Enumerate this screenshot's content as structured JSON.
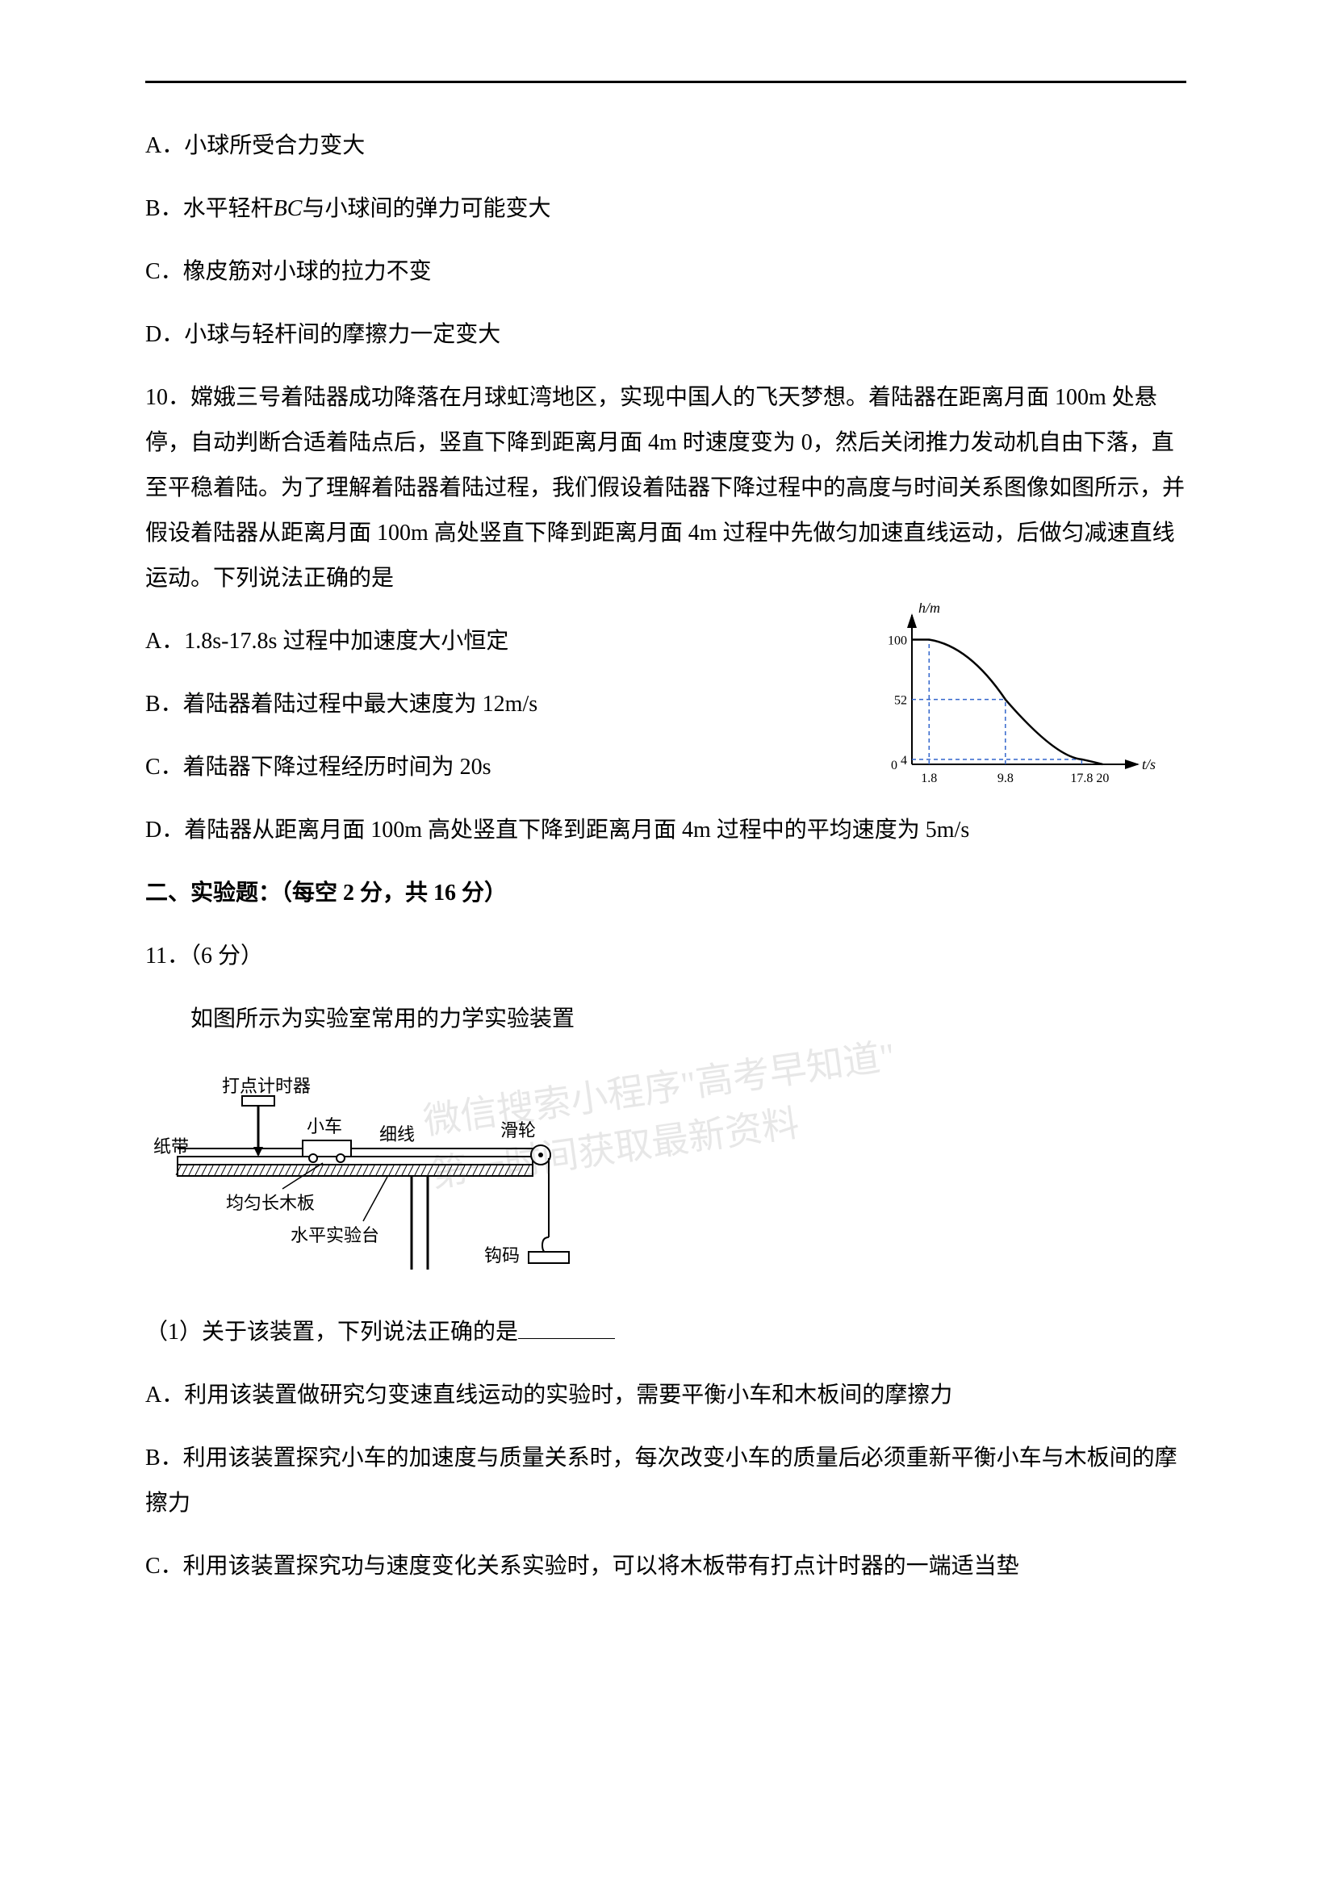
{
  "question9": {
    "options": {
      "A": "A．小球所受合力变大",
      "B_pre": "B．水平轻杆",
      "B_var": "BC",
      "B_post": "与小球间的弹力可能变大",
      "C": "C．橡皮筋对小球的拉力不变",
      "D": "D．小球与轻杆间的摩擦力一定变大"
    }
  },
  "question10": {
    "stem": "10．嫦娥三号着陆器成功降落在月球虹湾地区，实现中国人的飞天梦想。着陆器在距离月面 100m 处悬停，自动判断合适着陆点后，竖直下降到距离月面 4m 时速度变为 0，然后关闭推力发动机自由下落，直至平稳着陆。为了理解着陆器着陆过程，我们假设着陆器下降过程中的高度与时间关系图像如图所示，并假设着陆器从距离月面 100m 高处竖直下降到距离月面 4m 过程中先做匀加速直线运动，后做匀减速直线运动。下列说法正确的是",
    "options": {
      "A": "A．1.8s-17.8s 过程中加速度大小恒定",
      "B": "B．着陆器着陆过程中最大速度为 12m/s",
      "C": "C．着陆器下降过程经历时间为 20s",
      "D": "D．着陆器从距离月面 100m 高处竖直下降到距离月面 4m 过程中的平均速度为 5m/s"
    },
    "chart": {
      "type": "line",
      "x_axis": {
        "label": "t/s",
        "ticks": [
          0,
          1.8,
          9.8,
          17.8,
          20
        ],
        "range": [
          0,
          22
        ]
      },
      "y_axis": {
        "label": "h/m",
        "ticks": [
          0,
          4,
          52,
          100
        ],
        "range": [
          0,
          110
        ]
      },
      "curve_points": [
        {
          "t": 0,
          "h": 100
        },
        {
          "t": 1.8,
          "h": 100
        },
        {
          "t": 5,
          "h": 92
        },
        {
          "t": 9.8,
          "h": 52
        },
        {
          "t": 14,
          "h": 18
        },
        {
          "t": 17.8,
          "h": 4
        },
        {
          "t": 20,
          "h": 0
        }
      ],
      "dashed_lines": [
        {
          "from": {
            "t": 0,
            "h": 52
          },
          "to": {
            "t": 9.8,
            "h": 52
          }
        },
        {
          "from": {
            "t": 9.8,
            "h": 0
          },
          "to": {
            "t": 9.8,
            "h": 52
          }
        },
        {
          "from": {
            "t": 0,
            "h": 4
          },
          "to": {
            "t": 17.8,
            "h": 4
          }
        },
        {
          "from": {
            "t": 17.8,
            "h": 0
          },
          "to": {
            "t": 17.8,
            "h": 4
          }
        },
        {
          "from": {
            "t": 1.8,
            "h": 0
          },
          "to": {
            "t": 1.8,
            "h": 100
          }
        }
      ],
      "colors": {
        "axis": "#000000",
        "curve": "#000000",
        "dashed": "#3366cc"
      },
      "font_size_pt": 11
    }
  },
  "section2": {
    "title": "二、实验题：（每空 2 分，共 16 分）"
  },
  "question11": {
    "header": "11．（6 分）",
    "intro": "如图所示为实验室常用的力学实验装置",
    "diagram": {
      "labels": {
        "tape": "纸带",
        "timer": "打点计时器",
        "cart": "小车",
        "thread": "细线",
        "pulley": "滑轮",
        "board": "均匀长木板",
        "table": "水平实验台",
        "weight": "钩码"
      },
      "colors": {
        "line": "#000000",
        "fill": "#ffffff"
      }
    },
    "sub1_pre": "（1）关于该装置，下列说法正确的是",
    "options": {
      "A": "A．利用该装置做研究匀变速直线运动的实验时，需要平衡小车和木板间的摩擦力",
      "B": "B．利用该装置探究小车的加速度与质量关系时，每次改变小车的质量后必须重新平衡小车与木板间的摩擦力",
      "C": "C．利用该装置探究功与速度变化关系实验时，可以将木板带有打点计时器的一端适当垫"
    }
  },
  "watermark": {
    "line1": "微信搜索小程序\"高考早知道\"",
    "line2": "第一时间获取最新资料"
  }
}
